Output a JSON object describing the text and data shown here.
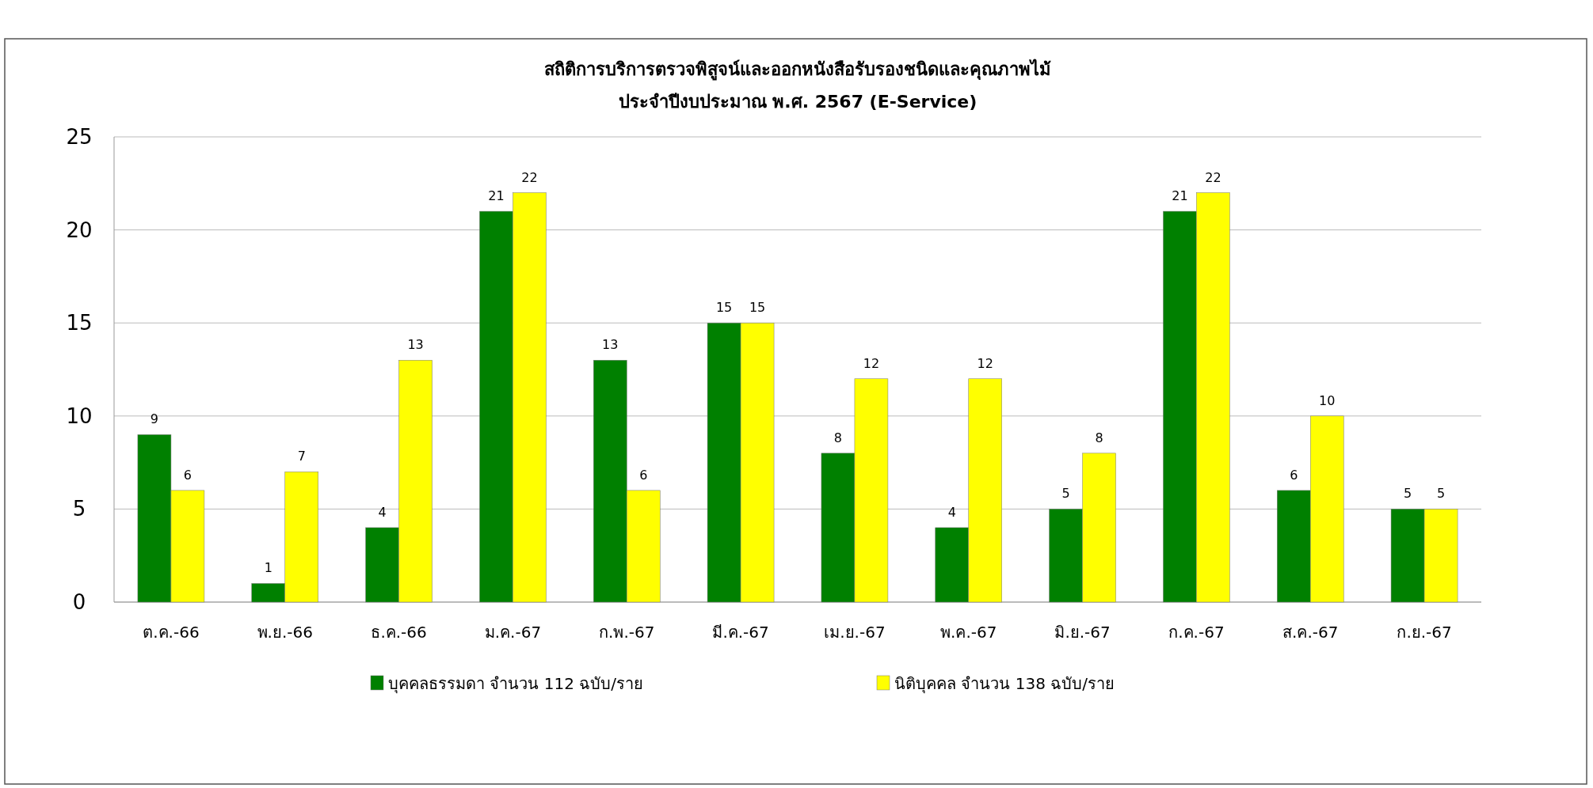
{
  "chart_data": {
    "type": "bar",
    "title": "สถิติการบริการตรวจพิสูจน์และออกหนังสือรับรองชนิดและคุณภาพไม้",
    "subtitle": "ประจำปีงบประมาณ พ.ศ. 2567 (E-Service)",
    "categories": [
      "ต.ค.-66",
      "พ.ย.-66",
      "ธ.ค.-66",
      "ม.ค.-67",
      "ก.พ.-67",
      "มี.ค.-67",
      "เม.ย.-67",
      "พ.ค.-67",
      "มิ.ย.-67",
      "ก.ค.-67",
      "ส.ค.-67",
      "ก.ย.-67"
    ],
    "series": [
      {
        "name": "บุคคลธรรมดา จำนวน 112 ฉบับ/ราย",
        "color": "#008000",
        "values": [
          9,
          1,
          4,
          21,
          13,
          15,
          8,
          4,
          5,
          21,
          6,
          5
        ]
      },
      {
        "name": "นิติบุคคล จำนวน 138 ฉบับ/ราย",
        "color": "#ffff00",
        "values": [
          6,
          7,
          13,
          22,
          6,
          15,
          12,
          12,
          8,
          22,
          10,
          5
        ]
      }
    ],
    "ylim": [
      0,
      25
    ],
    "yticks": [
      0,
      5,
      10,
      15,
      20,
      25
    ],
    "grid": "y",
    "legend": "bottom",
    "data_labels": true
  }
}
